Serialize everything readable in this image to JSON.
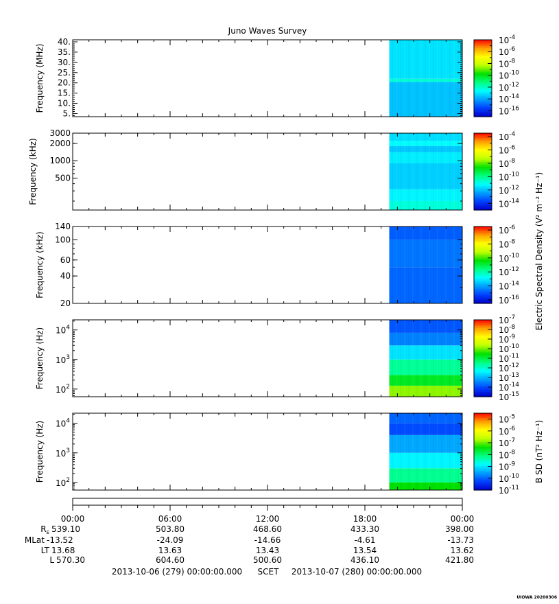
{
  "chart_data": {
    "type": "heatmap",
    "title": "Juno Waves Survey",
    "colors": [
      "#0000c8",
      "#0040ff",
      "#00a0ff",
      "#00ffff",
      "#00ff80",
      "#00e000",
      "#c0ff00",
      "#ffff00",
      "#ffa000",
      "#ff0000"
    ],
    "data_start_hour": 19.5,
    "x_axis": {
      "range_hours": [
        0,
        24
      ],
      "tick_labels": [
        "00:00",
        "06:00",
        "12:00",
        "18:00",
        "00:00"
      ],
      "tick_hours": [
        0,
        6,
        12,
        18,
        24
      ]
    },
    "panels": [
      {
        "ylabel": "Frequency (MHz)",
        "yscale": "linear",
        "ylim": [
          3.5,
          41
        ],
        "yticks": [
          {
            "v": 40,
            "label": "40."
          },
          {
            "v": 35,
            "label": "35."
          },
          {
            "v": 30,
            "label": "30."
          },
          {
            "v": 25,
            "label": "25."
          },
          {
            "v": 20,
            "label": "20."
          },
          {
            "v": 15,
            "label": "15."
          },
          {
            "v": 10,
            "label": "10."
          },
          {
            "v": 5,
            "label": "5."
          }
        ],
        "cb_range": [
          -17,
          -4
        ],
        "cb_labels": [
          -4,
          -6,
          -8,
          -10,
          -12,
          -14,
          -16
        ],
        "cb_title": "",
        "bands": [
          {
            "f0": 3.5,
            "f1": 20.5,
            "level": -13.6
          },
          {
            "f0": 20.5,
            "f1": 22,
            "level": -12.2
          },
          {
            "f0": 22,
            "f1": 41,
            "level": -13.1
          }
        ]
      },
      {
        "ylabel": "Frequency (kHz)",
        "yscale": "log",
        "ylim": [
          140,
          3000
        ],
        "yticks": [
          {
            "v": 3000,
            "label": "3000"
          },
          {
            "v": 2000,
            "label": "2000"
          },
          {
            "v": 1000,
            "label": "1000"
          },
          {
            "v": 500,
            "label": "500"
          }
        ],
        "cb_range": [
          -15,
          -3.5
        ],
        "cb_labels": [
          -4,
          -6,
          -8,
          -10,
          -12,
          -14
        ],
        "cb_title": "Electric Spectral Density (V² m⁻² Hz⁻¹)",
        "bands": [
          {
            "f0": 140,
            "f1": 200,
            "level": -10.8
          },
          {
            "f0": 200,
            "f1": 320,
            "level": -11.3
          },
          {
            "f0": 320,
            "f1": 900,
            "level": -11.8
          },
          {
            "f0": 900,
            "f1": 1400,
            "level": -11.4
          },
          {
            "f0": 1400,
            "f1": 1800,
            "level": -11.9
          },
          {
            "f0": 1800,
            "f1": 2200,
            "level": -11.2
          },
          {
            "f0": 2200,
            "f1": 3000,
            "level": -11.6
          }
        ]
      },
      {
        "ylabel": "Frequency (kHz)",
        "yscale": "log",
        "ylim": [
          20,
          140
        ],
        "yticks": [
          {
            "v": 140,
            "label": "140"
          },
          {
            "v": 100,
            "label": "100"
          },
          {
            "v": 60,
            "label": "60"
          },
          {
            "v": 40,
            "label": "40"
          },
          {
            "v": 20,
            "label": "20"
          }
        ],
        "cb_range": [
          -16.5,
          -5.5
        ],
        "cb_labels": [
          -6,
          -8,
          -10,
          -12,
          -14,
          -16
        ],
        "cb_title": "",
        "bands": [
          {
            "f0": 20,
            "f1": 50,
            "level": -14.8
          },
          {
            "f0": 50,
            "f1": 100,
            "level": -14.6
          },
          {
            "f0": 100,
            "f1": 140,
            "level": -14.9
          }
        ]
      },
      {
        "ylabel": "Frequency (Hz)",
        "yscale": "log",
        "ylim": [
          55,
          22000
        ],
        "yticks": [
          {
            "v": 10000,
            "label": "10",
            "exp": 4
          },
          {
            "v": 1000,
            "label": "10",
            "exp": 3
          },
          {
            "v": 100,
            "label": "10",
            "exp": 2
          }
        ],
        "cb_range": [
          -15,
          -7
        ],
        "cb_labels": [
          -7,
          -8,
          -9,
          -10,
          -11,
          -12,
          -13,
          -14,
          -15
        ],
        "cb_title": "",
        "bands": [
          {
            "f0": 55,
            "f1": 130,
            "level": -9.9
          },
          {
            "f0": 130,
            "f1": 300,
            "level": -10.8
          },
          {
            "f0": 300,
            "f1": 1000,
            "level": -11.6
          },
          {
            "f0": 1000,
            "f1": 3000,
            "level": -12.6
          },
          {
            "f0": 3000,
            "f1": 8000,
            "level": -13.5
          },
          {
            "f0": 8000,
            "f1": 22000,
            "level": -13.9
          }
        ]
      },
      {
        "ylabel": "Frequency (Hz)",
        "yscale": "log",
        "ylim": [
          55,
          22000
        ],
        "yticks": [
          {
            "v": 10000,
            "label": "10",
            "exp": 4
          },
          {
            "v": 1000,
            "label": "10",
            "exp": 3
          },
          {
            "v": 100,
            "label": "10",
            "exp": 2
          }
        ],
        "cb_range": [
          -11,
          -4.5
        ],
        "cb_labels": [
          -5,
          -6,
          -7,
          -8,
          -9,
          -10,
          -11
        ],
        "cb_title": "B SD (nT² Hz⁻¹)",
        "bands": [
          {
            "f0": 55,
            "f1": 100,
            "level": -7.4
          },
          {
            "f0": 100,
            "f1": 300,
            "level": -8.2
          },
          {
            "f0": 300,
            "f1": 1000,
            "level": -8.9
          },
          {
            "f0": 1000,
            "f1": 4000,
            "level": -9.5
          },
          {
            "f0": 4000,
            "f1": 10000,
            "level": -10.2
          },
          {
            "f0": 10000,
            "f1": 22000,
            "level": -10.0
          }
        ]
      }
    ],
    "ephemeris": [
      {
        "label": "R",
        "sub": "E",
        "values": [
          "539.10",
          "503.80",
          "468.60",
          "433.30",
          "398.00"
        ]
      },
      {
        "label": "MLat",
        "sub": "",
        "values": [
          "-13.52",
          "-24.09",
          "-14.66",
          "-4.61",
          "-13.73"
        ]
      },
      {
        "label": "LT",
        "sub": "",
        "values": [
          "13.68",
          "13.63",
          "13.43",
          "13.54",
          "13.62"
        ]
      },
      {
        "label": "L",
        "sub": "",
        "values": [
          "570.30",
          "604.60",
          "500.60",
          "436.10",
          "421.80"
        ]
      }
    ],
    "time_range": {
      "start": "2013-10-06 (279) 00:00:00.000",
      "label": "SCET",
      "end": "2013-10-07 (280) 00:00:00.000"
    },
    "stamp": "UIOWA 20200306"
  }
}
